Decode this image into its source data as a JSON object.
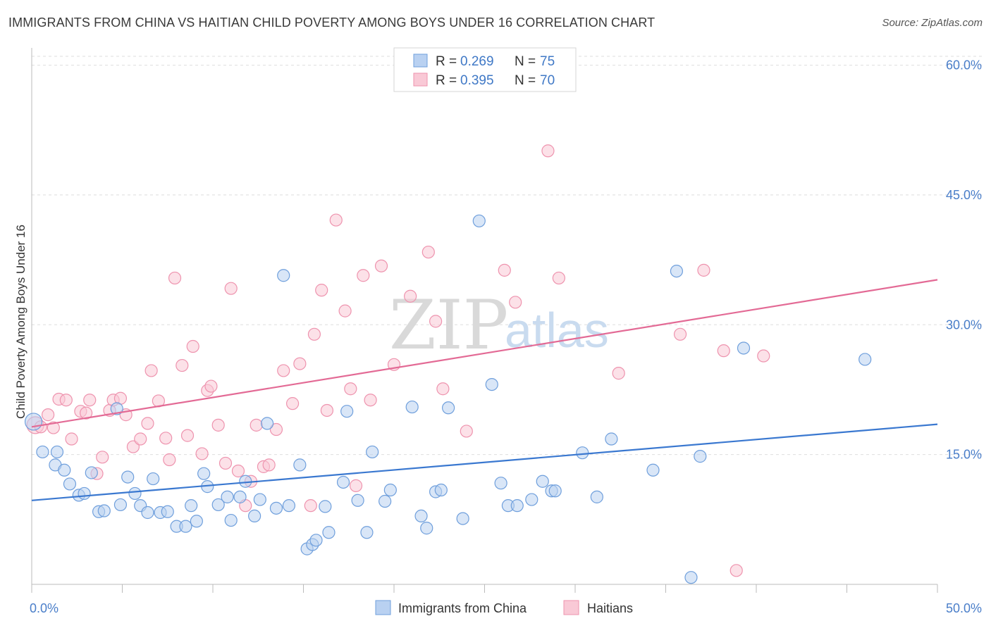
{
  "title": "IMMIGRANTS FROM CHINA VS HAITIAN CHILD POVERTY AMONG BOYS UNDER 16 CORRELATION CHART",
  "source": "Source: ZipAtlas.com",
  "watermark": {
    "zip": "ZIP",
    "atlas": "atlas"
  },
  "chart_data": {
    "type": "scatter",
    "ylabel": "Child Poverty Among Boys Under 16",
    "xlim": [
      0,
      50
    ],
    "ylim": [
      0,
      62
    ],
    "x_tick_labels": [
      "0.0%",
      "50.0%"
    ],
    "y_ticks": [
      15,
      30,
      45,
      60
    ],
    "y_tick_labels": [
      "15.0%",
      "30.0%",
      "45.0%",
      "60.0%"
    ],
    "grid": "horizontal dashed",
    "legend_placement": "top-center",
    "colors": {
      "china": "#6f9fdc",
      "china_fill": "#b9d1f1",
      "haiti": "#ee93ae",
      "haiti_fill": "#f9c9d6",
      "china_line": "#3a78d0",
      "haiti_line": "#e36a95"
    },
    "stats": [
      {
        "r_label": "R =",
        "r": "0.269",
        "n_label": "N =",
        "n": "75"
      },
      {
        "r_label": "R =",
        "r": "0.395",
        "n_label": "N =",
        "n": "70"
      }
    ],
    "series": [
      {
        "name": "Immigrants from China",
        "trend": [
          [
            0,
            9.7
          ],
          [
            50,
            18.5
          ]
        ],
        "points": [
          [
            0.1,
            18.8
          ],
          [
            0.6,
            15.3
          ],
          [
            1.3,
            13.8
          ],
          [
            1.4,
            15.3
          ],
          [
            1.8,
            13.2
          ],
          [
            2.1,
            11.6
          ],
          [
            2.6,
            10.3
          ],
          [
            2.9,
            10.5
          ],
          [
            3.3,
            12.9
          ],
          [
            3.7,
            8.4
          ],
          [
            4.0,
            8.5
          ],
          [
            4.7,
            20.3
          ],
          [
            4.9,
            9.2
          ],
          [
            5.3,
            12.4
          ],
          [
            5.7,
            10.5
          ],
          [
            6.0,
            9.1
          ],
          [
            6.4,
            8.3
          ],
          [
            6.7,
            12.2
          ],
          [
            7.1,
            8.3
          ],
          [
            7.5,
            8.4
          ],
          [
            8.0,
            6.7
          ],
          [
            8.5,
            6.7
          ],
          [
            8.8,
            9.1
          ],
          [
            9.1,
            7.3
          ],
          [
            9.5,
            12.8
          ],
          [
            9.7,
            11.3
          ],
          [
            10.3,
            9.2
          ],
          [
            10.8,
            10.1
          ],
          [
            11.0,
            7.4
          ],
          [
            11.5,
            10.1
          ],
          [
            11.8,
            11.9
          ],
          [
            12.3,
            7.9
          ],
          [
            12.6,
            9.8
          ],
          [
            13.0,
            18.6
          ],
          [
            13.5,
            8.8
          ],
          [
            13.9,
            35.7
          ],
          [
            14.2,
            9.1
          ],
          [
            14.8,
            13.8
          ],
          [
            15.2,
            4.1
          ],
          [
            15.5,
            4.6
          ],
          [
            15.7,
            5.1
          ],
          [
            16.2,
            9.0
          ],
          [
            16.4,
            6.0
          ],
          [
            17.2,
            11.8
          ],
          [
            17.4,
            20.0
          ],
          [
            18.0,
            9.7
          ],
          [
            18.5,
            6.0
          ],
          [
            18.8,
            15.3
          ],
          [
            19.5,
            9.6
          ],
          [
            19.8,
            10.9
          ],
          [
            21.0,
            20.5
          ],
          [
            21.5,
            7.9
          ],
          [
            21.8,
            6.5
          ],
          [
            22.3,
            10.7
          ],
          [
            22.6,
            10.9
          ],
          [
            23.0,
            20.4
          ],
          [
            23.8,
            7.6
          ],
          [
            24.7,
            42.0
          ],
          [
            25.4,
            23.1
          ],
          [
            25.9,
            11.7
          ],
          [
            26.3,
            9.1
          ],
          [
            26.8,
            9.1
          ],
          [
            27.6,
            9.8
          ],
          [
            28.2,
            11.9
          ],
          [
            28.7,
            10.8
          ],
          [
            28.9,
            10.8
          ],
          [
            30.4,
            15.2
          ],
          [
            31.2,
            10.1
          ],
          [
            32.0,
            16.8
          ],
          [
            34.3,
            13.2
          ],
          [
            35.6,
            36.2
          ],
          [
            36.4,
            0.8
          ],
          [
            36.9,
            14.8
          ],
          [
            39.3,
            27.3
          ],
          [
            46.0,
            26.0
          ]
        ]
      },
      {
        "name": "Haitians",
        "trend": [
          [
            0,
            18.2
          ],
          [
            50,
            35.2
          ]
        ],
        "points": [
          [
            0.2,
            18.4
          ],
          [
            0.5,
            18.2
          ],
          [
            0.9,
            19.6
          ],
          [
            1.2,
            18.1
          ],
          [
            1.5,
            21.4
          ],
          [
            1.9,
            21.3
          ],
          [
            2.2,
            16.8
          ],
          [
            2.7,
            20.0
          ],
          [
            3.0,
            19.8
          ],
          [
            3.2,
            21.3
          ],
          [
            3.6,
            12.8
          ],
          [
            3.9,
            14.7
          ],
          [
            4.3,
            20.1
          ],
          [
            4.5,
            21.3
          ],
          [
            4.9,
            21.5
          ],
          [
            5.2,
            19.6
          ],
          [
            5.6,
            15.9
          ],
          [
            6.0,
            16.8
          ],
          [
            6.4,
            18.6
          ],
          [
            6.6,
            24.7
          ],
          [
            7.0,
            21.2
          ],
          [
            7.4,
            16.9
          ],
          [
            7.6,
            14.4
          ],
          [
            7.9,
            35.4
          ],
          [
            8.3,
            25.3
          ],
          [
            8.6,
            17.2
          ],
          [
            8.9,
            27.5
          ],
          [
            9.4,
            15.1
          ],
          [
            9.7,
            22.4
          ],
          [
            9.9,
            22.9
          ],
          [
            10.3,
            18.4
          ],
          [
            10.7,
            14.0
          ],
          [
            11.0,
            34.2
          ],
          [
            11.4,
            13.1
          ],
          [
            11.8,
            9.1
          ],
          [
            12.1,
            11.9
          ],
          [
            12.4,
            18.4
          ],
          [
            12.8,
            13.6
          ],
          [
            13.1,
            13.8
          ],
          [
            13.5,
            17.9
          ],
          [
            13.9,
            24.7
          ],
          [
            14.4,
            20.9
          ],
          [
            14.8,
            25.5
          ],
          [
            15.4,
            9.1
          ],
          [
            15.6,
            28.9
          ],
          [
            16.0,
            34.0
          ],
          [
            16.3,
            20.1
          ],
          [
            16.8,
            42.1
          ],
          [
            17.3,
            31.6
          ],
          [
            17.6,
            22.6
          ],
          [
            17.9,
            11.4
          ],
          [
            18.3,
            35.7
          ],
          [
            18.7,
            21.3
          ],
          [
            19.3,
            36.8
          ],
          [
            20.0,
            25.4
          ],
          [
            20.9,
            33.3
          ],
          [
            21.9,
            38.4
          ],
          [
            22.3,
            30.4
          ],
          [
            22.7,
            22.6
          ],
          [
            24.0,
            17.7
          ],
          [
            26.1,
            36.3
          ],
          [
            26.7,
            32.6
          ],
          [
            28.5,
            50.1
          ],
          [
            29.1,
            35.4
          ],
          [
            32.4,
            24.4
          ],
          [
            35.8,
            28.9
          ],
          [
            37.1,
            36.3
          ],
          [
            38.2,
            27.0
          ],
          [
            38.9,
            1.6
          ],
          [
            40.4,
            26.4
          ]
        ]
      }
    ]
  },
  "bottom_legend": [
    "Immigrants from China",
    "Haitians"
  ]
}
